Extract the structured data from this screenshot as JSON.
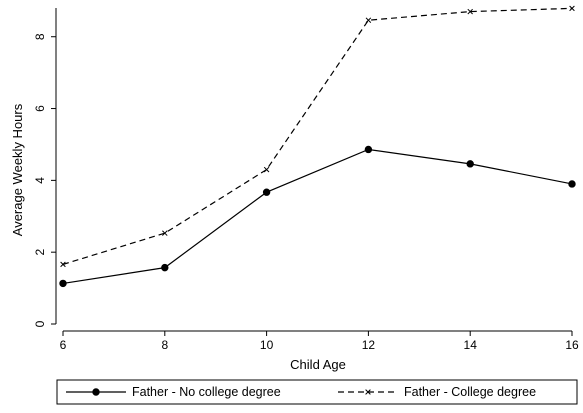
{
  "chart_data": {
    "type": "line",
    "title": "",
    "xlabel": "Child Age",
    "ylabel": "Average Weekly Hours",
    "x": [
      6,
      8,
      10,
      12,
      14,
      16
    ],
    "xlim": [
      6,
      16
    ],
    "ylim": [
      0,
      8.8
    ],
    "x_ticks": [
      6,
      8,
      10,
      12,
      14,
      16
    ],
    "y_ticks": [
      0,
      2,
      4,
      6,
      8
    ],
    "x_tick_labels": [
      "6",
      "8",
      "10",
      "12",
      "14",
      "16"
    ],
    "y_tick_labels": [
      "0",
      "2",
      "4",
      "6",
      "8"
    ],
    "grid": false,
    "legend_position": "bottom",
    "series": [
      {
        "name": "Father - No college degree",
        "values": [
          1.13,
          1.57,
          3.67,
          4.86,
          4.46,
          3.9
        ],
        "line_style": "solid",
        "marker": "circle",
        "color": "#000000"
      },
      {
        "name": "Father - College degree",
        "values": [
          1.66,
          2.53,
          4.3,
          8.46,
          8.7,
          8.79
        ],
        "line_style": "dashed",
        "marker": "x",
        "color": "#000000"
      }
    ]
  }
}
